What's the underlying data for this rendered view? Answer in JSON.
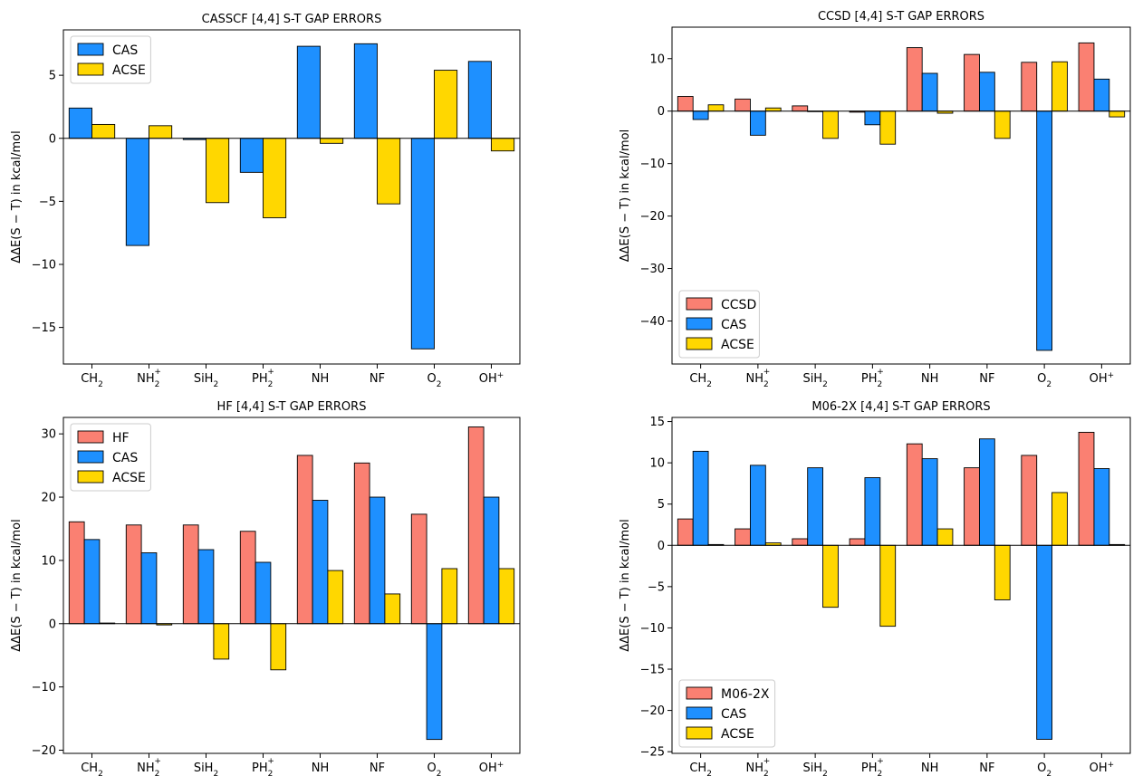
{
  "chart_data": [
    {
      "type": "bar",
      "title": "CASSCF [4,4] S-T GAP ERRORS",
      "xlabel": "",
      "ylabel": "ΔΔE(S − T) in kcal/mol",
      "categories": [
        "CH2",
        "NH2+",
        "SiH2",
        "PH2+",
        "NH",
        "NF",
        "O2",
        "OH+"
      ],
      "ylim": [
        -17.9,
        8.6
      ],
      "yticks": [
        5,
        0,
        -5,
        -10,
        -15
      ],
      "legend_position": "upper-left",
      "grid": false,
      "series": [
        {
          "name": "CAS",
          "color": "#1e90ff",
          "values": [
            2.4,
            -8.5,
            -0.1,
            -2.7,
            7.3,
            7.5,
            -16.7,
            6.1
          ]
        },
        {
          "name": "ACSE",
          "color": "#ffd700",
          "values": [
            1.1,
            1.0,
            -5.1,
            -6.3,
            -0.4,
            -5.2,
            5.4,
            -1.0
          ]
        }
      ]
    },
    {
      "type": "bar",
      "title": "CCSD [4,4] S-T GAP ERRORS",
      "xlabel": "",
      "ylabel": "ΔΔE(S − T) in kcal/mol",
      "categories": [
        "CH2",
        "NH2+",
        "SiH2",
        "PH2+",
        "NH",
        "NF",
        "O2",
        "OH+"
      ],
      "ylim": [
        -48.2,
        16.0
      ],
      "yticks": [
        10,
        0,
        -10,
        -20,
        -30,
        -40
      ],
      "legend_position": "lower-left",
      "grid": false,
      "series": [
        {
          "name": "CCSD",
          "color": "#fa8072",
          "values": [
            2.8,
            2.3,
            1.0,
            -0.2,
            12.1,
            10.8,
            9.3,
            13.0
          ]
        },
        {
          "name": "CAS",
          "color": "#1e90ff",
          "values": [
            -1.6,
            -4.6,
            -0.1,
            -2.6,
            7.2,
            7.4,
            -45.6,
            6.1
          ]
        },
        {
          "name": "ACSE",
          "color": "#ffd700",
          "values": [
            1.2,
            0.6,
            -5.2,
            -6.3,
            -0.4,
            -5.2,
            9.4,
            -1.1
          ]
        }
      ]
    },
    {
      "type": "bar",
      "title": "HF [4,4] S-T GAP ERRORS",
      "xlabel": "",
      "ylabel": "ΔΔE(S − T) in kcal/mol",
      "categories": [
        "CH2",
        "NH2+",
        "SiH2",
        "PH2+",
        "NH",
        "NF",
        "O2",
        "OH+"
      ],
      "ylim": [
        -20.5,
        32.6
      ],
      "yticks": [
        30,
        20,
        10,
        0,
        -10,
        -20
      ],
      "legend_position": "upper-left",
      "grid": false,
      "series": [
        {
          "name": "HF",
          "color": "#fa8072",
          "values": [
            16.1,
            15.6,
            15.6,
            14.6,
            26.6,
            25.4,
            17.3,
            31.1
          ]
        },
        {
          "name": "CAS",
          "color": "#1e90ff",
          "values": [
            13.3,
            11.2,
            11.7,
            9.7,
            19.5,
            20.0,
            -18.3,
            20.0
          ]
        },
        {
          "name": "ACSE",
          "color": "#ffd700",
          "values": [
            0.1,
            -0.2,
            -5.6,
            -7.3,
            8.4,
            4.7,
            8.7,
            8.7
          ]
        }
      ]
    },
    {
      "type": "bar",
      "title": "M06-2X [4,4] S-T GAP ERRORS",
      "xlabel": "",
      "ylabel": "ΔΔE(S − T) in kcal/mol",
      "categories": [
        "CH2",
        "NH2+",
        "SiH2",
        "PH2+",
        "NH",
        "NF",
        "O2",
        "OH+"
      ],
      "ylim": [
        -25.2,
        15.5
      ],
      "yticks": [
        15,
        10,
        5,
        0,
        -5,
        -10,
        -15,
        -20,
        -25
      ],
      "legend_position": "lower-left",
      "grid": false,
      "series": [
        {
          "name": "M06-2X",
          "color": "#fa8072",
          "values": [
            3.2,
            2.0,
            0.8,
            0.8,
            12.3,
            9.4,
            10.9,
            13.7
          ]
        },
        {
          "name": "CAS",
          "color": "#1e90ff",
          "values": [
            11.4,
            9.7,
            9.4,
            8.2,
            10.5,
            12.9,
            -23.5,
            9.3
          ]
        },
        {
          "name": "ACSE",
          "color": "#ffd700",
          "values": [
            0.1,
            0.3,
            -7.5,
            -9.8,
            2.0,
            -6.6,
            6.4,
            0.1
          ]
        }
      ]
    }
  ]
}
